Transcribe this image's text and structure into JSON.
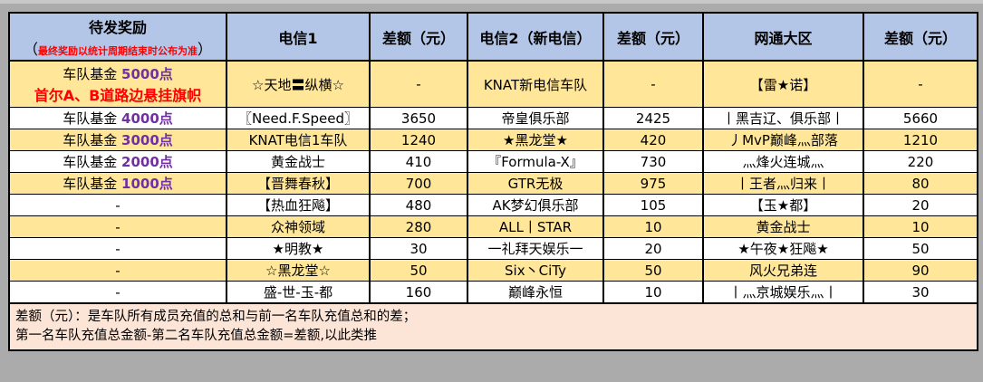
{
  "colors": {
    "header_bg": "#b4c6e7",
    "row_yellow": "#ffe699",
    "row_white": "#ffffff",
    "footer_bg": "#fce4d6",
    "points": "#7030a0",
    "highlight": "#ff0000"
  },
  "header": {
    "reward_title": "待发奖励",
    "reward_note_open": "（",
    "reward_note": "最终奖励以统计周期结束时公布为准",
    "reward_note_close": "）",
    "columns": [
      "电信1",
      "差额（元）",
      "电信2（新电信）",
      "差额（元）",
      "网通大区",
      "差额（元）"
    ]
  },
  "rows": [
    {
      "reward_prefix": "车队基金 ",
      "reward_points": "5000点",
      "reward_extra": "首尔A、B道路边悬挂旗帜",
      "c1": "☆天地〓纵横☆",
      "d1": "-",
      "c2": "KNAT新电信车队",
      "d2": "-",
      "c3": "【雷★诺】",
      "d3": "-"
    },
    {
      "reward_prefix": "车队基金 ",
      "reward_points": "4000点",
      "c1": "〖Need.F.Speed〗",
      "d1": "3650",
      "c2": "帝皇俱乐部",
      "d2": "2425",
      "c3": "丨黑吉辽、俱乐部丨",
      "d3": "5660"
    },
    {
      "reward_prefix": "车队基金 ",
      "reward_points": "3000点",
      "c1": "KNAT电信1车队",
      "d1": "1240",
      "c2": "★黑龙堂★",
      "d2": "420",
      "c3": "丿MvP巅峰灬部落",
      "d3": "1210"
    },
    {
      "reward_prefix": "车队基金 ",
      "reward_points": "2000点",
      "c1": "黄金战士",
      "d1": "410",
      "c2": "『Formula-X』",
      "d2": "730",
      "c3": "灬烽火连城灬",
      "d3": "220"
    },
    {
      "reward_prefix": "车队基金 ",
      "reward_points": "1000点",
      "c1": "【晋舞春秋】",
      "d1": "700",
      "c2": "GTR无极",
      "d2": "975",
      "c3": "丨王者灬归来丨",
      "d3": "80"
    },
    {
      "reward_prefix": "-",
      "c1": "【热血狂飚】",
      "d1": "480",
      "c2": "AK梦幻俱乐部",
      "d2": "105",
      "c3": "【玉★都】",
      "d3": "20"
    },
    {
      "reward_prefix": "-",
      "c1": "众神领域",
      "d1": "280",
      "c2": "ALL丨STAR",
      "d2": "10",
      "c3": "黄金战士",
      "d3": "10"
    },
    {
      "reward_prefix": "-",
      "c1": "★明教★",
      "d1": "30",
      "c2": "一礼拜天娱乐一",
      "d2": "20",
      "c3": "★午夜★狂飚★",
      "d3": "50"
    },
    {
      "reward_prefix": "-",
      "c1": "☆黑龙堂☆",
      "d1": "50",
      "c2": "Six丶CiTy",
      "d2": "50",
      "c3": "风火兄弟连",
      "d3": "90"
    },
    {
      "reward_prefix": "-",
      "c1": "盛-世-玉-都",
      "d1": "160",
      "c2": "巅峰永恒",
      "d2": "10",
      "c3": "丨灬京城娱乐灬丨",
      "d3": "30"
    }
  ],
  "footer": {
    "line1": "差额（元）：是车队所有成员充值的总和与前一名车队充值总和的差；",
    "line2": "第一名车队充值总金额-第二名车队充值总金额=差额,以此类推"
  }
}
